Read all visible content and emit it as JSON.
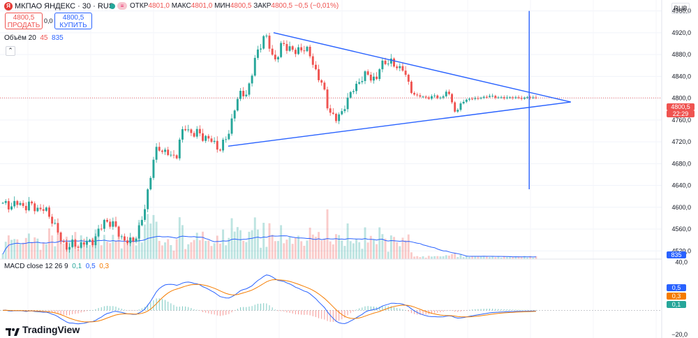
{
  "header": {
    "logo_letter": "Я",
    "title": "МКПАО ЯНДЕКС · 30 · RUS",
    "ohlc": [
      {
        "label": "ОТКР",
        "value": "4801,0"
      },
      {
        "label": "МАКС",
        "value": "4801,0"
      },
      {
        "label": "МИН",
        "value": "4800,5"
      },
      {
        "label": "ЗАКР",
        "value": "4800,5"
      }
    ],
    "change": "−0,5 (−0,01%)",
    "currency": "RUB"
  },
  "trade": {
    "sell_price": "4800,5",
    "sell_label": "ПРОДАТЬ",
    "spread": "0,0",
    "buy_price": "4800,5",
    "buy_label": "КУПИТЬ"
  },
  "volume_legend": {
    "label": "Объём 20",
    "value1": "45",
    "value2": "835"
  },
  "macd_legend": {
    "label": "MACD close 12 26 9",
    "v1": "0,1",
    "v2": "0,5",
    "v3": "0,3"
  },
  "footer": {
    "brand": "TradingView"
  },
  "price_axis_tags": {
    "last_price": "4800,5",
    "countdown": "22:29",
    "volume_tag": "835",
    "macd_tags": [
      "0,5",
      "0,3",
      "0,1"
    ]
  },
  "colors": {
    "up": "#26a69a",
    "down": "#ef5350",
    "line": "#2962ff",
    "signal": "#f57c00",
    "volume_ma": "#2962ff"
  },
  "chart_data": [
    {
      "type": "candlestick",
      "title": "МКПАО ЯНДЕКС · 30 · RUS",
      "y_ticks": [
        4520,
        4560,
        4600,
        4640,
        4680,
        4720,
        4760,
        4800,
        4840,
        4880,
        4920,
        4960
      ],
      "y_tick_labels": [
        "4520,0",
        "4560,0",
        "4600,0",
        "4640,0",
        "4680,0",
        "4720,0",
        "4760,0",
        "4800,0",
        "4840,0",
        "4880,0",
        "4920,0",
        "4960,0"
      ],
      "ylim": [
        4505,
        4980
      ],
      "last_price": 4800.5,
      "close_series": [
        4604,
        4606,
        4603,
        4607,
        4605,
        4602,
        4604,
        4600,
        4598,
        4596,
        4590,
        4580,
        4560,
        4540,
        4530,
        4528,
        4532,
        4530,
        4535,
        4533,
        4538,
        4548,
        4560,
        4578,
        4572,
        4565,
        4555,
        4542,
        4535,
        4538,
        4550,
        4565,
        4600,
        4650,
        4690,
        4710,
        4705,
        4700,
        4690,
        4695,
        4730,
        4745,
        4740,
        4735,
        4735,
        4730,
        4728,
        4720,
        4712,
        4710,
        4720,
        4740,
        4780,
        4800,
        4810,
        4810,
        4840,
        4880,
        4900,
        4915,
        4895,
        4870,
        4880,
        4900,
        4895,
        4890,
        4880,
        4895,
        4890,
        4880,
        4860,
        4840,
        4820,
        4790,
        4770,
        4760,
        4770,
        4790,
        4800,
        4820,
        4830,
        4835,
        4845,
        4840,
        4830,
        4860,
        4870,
        4865,
        4860,
        4858,
        4855,
        4830,
        4810,
        4805,
        4803,
        4802,
        4800,
        4805,
        4800,
        4802,
        4815,
        4795,
        4770,
        4790,
        4795,
        4800,
        4798,
        4800,
        4802,
        4803,
        4804,
        4802,
        4801,
        4800,
        4802,
        4801,
        4800,
        4800,
        4802,
        4800,
        4800.5
      ],
      "annotations": [
        {
          "type": "trendline",
          "from": {
            "bar": 55,
            "price": 4712
          },
          "to": {
            "bar": 133,
            "price": 4793
          }
        },
        {
          "type": "trendline",
          "from": {
            "bar": 66,
            "price": 4920
          },
          "to": {
            "bar": 133,
            "price": 4793
          }
        },
        {
          "type": "vertical_line",
          "bar": 128,
          "from_price": 4960,
          "to_price": 4633
        }
      ]
    },
    {
      "type": "bar",
      "title": "Объём 20",
      "last_value": 835
    },
    {
      "type": "line",
      "title": "MACD close 12 26 9",
      "y_ticks": [
        40,
        -20
      ],
      "y_tick_labels": [
        "40,0",
        "−20,0"
      ],
      "ylim": [
        -23,
        42
      ],
      "series_names": [
        "MACD",
        "Signal",
        "Histogram"
      ],
      "last_values": [
        0.5,
        0.3,
        0.1
      ]
    }
  ]
}
